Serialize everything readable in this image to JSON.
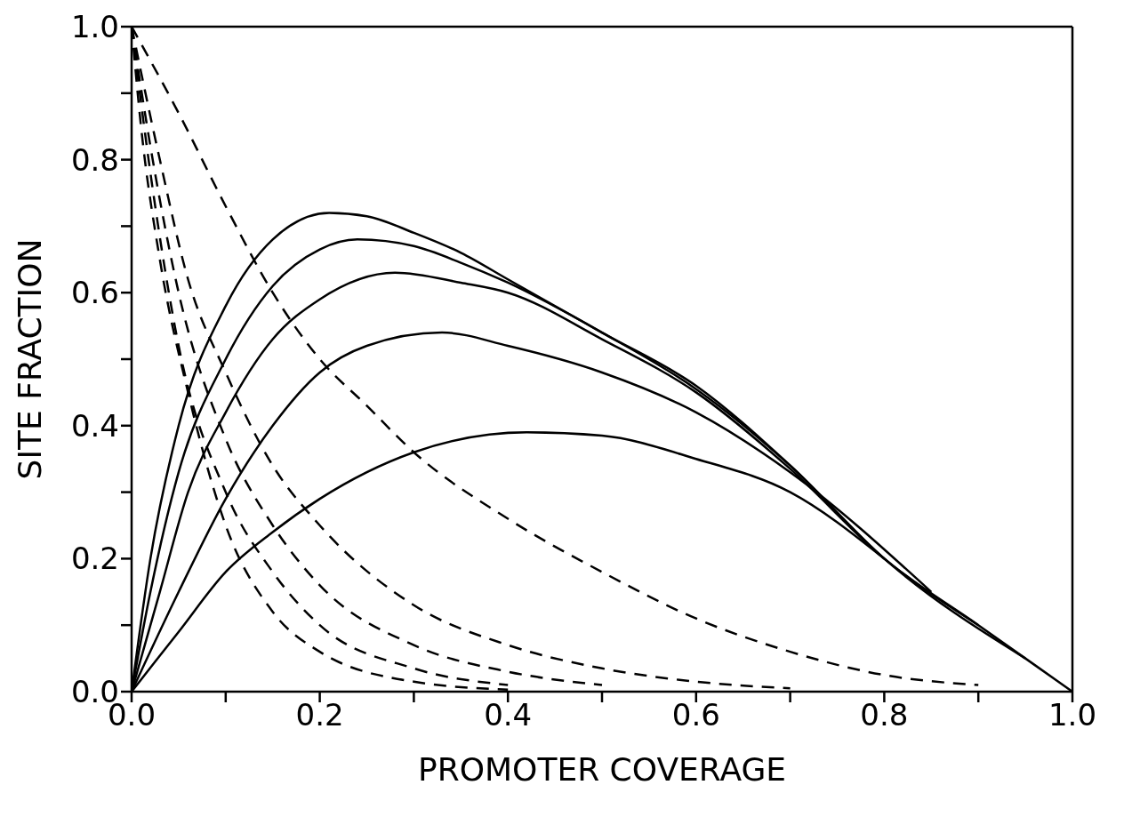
{
  "chart_data": {
    "type": "line",
    "xlabel": "PROMOTER COVERAGE",
    "ylabel": "SITE FRACTION",
    "xlim": [
      0,
      1
    ],
    "ylim": [
      0,
      1
    ],
    "xticks": [
      {
        "value": 0,
        "label": "0.0"
      },
      {
        "value": 0.1,
        "label": null
      },
      0.2,
      {
        "value": 0.3,
        "label": null
      },
      0.4,
      {
        "value": 0.5,
        "label": null
      },
      0.6,
      {
        "value": 0.7,
        "label": null
      },
      0.8,
      {
        "value": 0.9,
        "label": null
      },
      {
        "value": 1,
        "label": "1.0"
      }
    ],
    "yticks": [
      {
        "value": 0,
        "label": "0.0"
      },
      {
        "value": 0.1,
        "label": null
      },
      0.2,
      {
        "value": 0.3,
        "label": null
      },
      0.4,
      {
        "value": 0.5,
        "label": null
      },
      0.6,
      {
        "value": 0.7,
        "label": null
      },
      0.8,
      {
        "value": 0.9,
        "label": null
      },
      {
        "value": 1,
        "label": "1.0"
      }
    ],
    "grid": false,
    "marker": "none",
    "series": [
      {
        "color": "#000000",
        "line_style": "solid",
        "x": [
          0,
          0.02,
          0.05,
          0.1,
          0.15,
          0.21,
          0.25,
          0.3,
          0.35,
          0.4,
          0.5,
          0.6,
          0.7,
          0.8,
          0.9,
          1
        ],
        "values": [
          0,
          0.2,
          0.4,
          0.58,
          0.68,
          0.72,
          0.715,
          0.69,
          0.66,
          0.62,
          0.54,
          0.46,
          0.34,
          0.2,
          0.1,
          0
        ]
      },
      {
        "color": "#000000",
        "line_style": "solid",
        "x": [
          0,
          0.02,
          0.05,
          0.1,
          0.15,
          0.2,
          0.24,
          0.3,
          0.35,
          0.4,
          0.5,
          0.6,
          0.7,
          0.8,
          0.95
        ],
        "values": [
          0,
          0.15,
          0.33,
          0.5,
          0.61,
          0.665,
          0.68,
          0.67,
          0.645,
          0.615,
          0.54,
          0.455,
          0.34,
          0.2,
          0.05
        ]
      },
      {
        "color": "#000000",
        "line_style": "solid",
        "x": [
          0,
          0.03,
          0.06,
          0.1,
          0.15,
          0.2,
          0.28,
          0.35,
          0.4,
          0.5,
          0.6,
          0.7,
          0.8,
          0.9
        ],
        "values": [
          0,
          0.15,
          0.3,
          0.42,
          0.53,
          0.59,
          0.63,
          0.615,
          0.6,
          0.53,
          0.45,
          0.335,
          0.2,
          0.1
        ]
      },
      {
        "color": "#000000",
        "line_style": "solid",
        "x": [
          0,
          0.05,
          0.1,
          0.15,
          0.2,
          0.25,
          0.33,
          0.4,
          0.5,
          0.6,
          0.7,
          0.85
        ],
        "values": [
          0,
          0.15,
          0.29,
          0.4,
          0.48,
          0.52,
          0.54,
          0.52,
          0.48,
          0.42,
          0.33,
          0.15
        ]
      },
      {
        "color": "#000000",
        "line_style": "solid",
        "x": [
          0,
          0.05,
          0.1,
          0.15,
          0.2,
          0.3,
          0.42,
          0.5,
          0.6,
          0.7,
          0.8
        ],
        "values": [
          0,
          0.09,
          0.18,
          0.24,
          0.29,
          0.36,
          0.39,
          0.385,
          0.35,
          0.3,
          0.2
        ]
      },
      {
        "color": "#000000",
        "line_style": "dashed",
        "x": [
          0,
          0.05,
          0.1,
          0.15,
          0.2,
          0.25,
          0.3,
          0.4,
          0.5,
          0.6,
          0.7,
          0.8,
          0.9
        ],
        "values": [
          1,
          0.87,
          0.73,
          0.6,
          0.5,
          0.43,
          0.36,
          0.26,
          0.18,
          0.11,
          0.06,
          0.025,
          0.01
        ]
      },
      {
        "color": "#000000",
        "line_style": "dashed",
        "x": [
          0,
          0.03,
          0.06,
          0.1,
          0.15,
          0.2,
          0.3,
          0.4,
          0.5,
          0.6,
          0.7
        ],
        "values": [
          1,
          0.8,
          0.62,
          0.48,
          0.34,
          0.25,
          0.13,
          0.07,
          0.035,
          0.015,
          0.005
        ]
      },
      {
        "color": "#000000",
        "line_style": "dashed",
        "x": [
          0,
          0.02,
          0.05,
          0.1,
          0.15,
          0.2,
          0.3,
          0.4,
          0.5
        ],
        "values": [
          1,
          0.82,
          0.6,
          0.38,
          0.25,
          0.16,
          0.07,
          0.03,
          0.01
        ]
      },
      {
        "color": "#000000",
        "line_style": "dashed",
        "x": [
          0,
          0.02,
          0.05,
          0.1,
          0.15,
          0.2,
          0.3,
          0.4
        ],
        "values": [
          1,
          0.78,
          0.52,
          0.3,
          0.18,
          0.1,
          0.035,
          0.01
        ]
      },
      {
        "color": "#000000",
        "line_style": "dashed",
        "x": [
          0,
          0.01,
          0.03,
          0.06,
          0.1,
          0.15,
          0.2,
          0.3,
          0.4
        ],
        "values": [
          1,
          0.85,
          0.65,
          0.45,
          0.25,
          0.12,
          0.06,
          0.015,
          0.003
        ]
      }
    ]
  }
}
